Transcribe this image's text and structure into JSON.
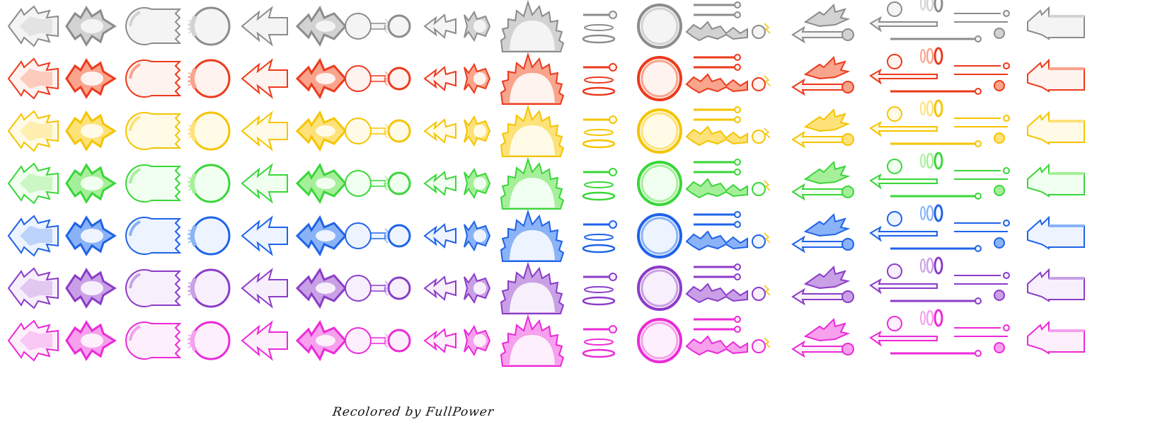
{
  "sheet": {
    "credit": "Recolored by  FullPower",
    "palettes": [
      {
        "name": "gray",
        "main": "#8c8c8c",
        "light": "#d2d2d2",
        "fill": "#f4f4f4"
      },
      {
        "name": "red",
        "main": "#ec3a1c",
        "light": "#f9a48c",
        "fill": "#fff3ef"
      },
      {
        "name": "yellow",
        "main": "#f5c400",
        "light": "#fde27a",
        "fill": "#fffbe6"
      },
      {
        "name": "green",
        "main": "#3ad63a",
        "light": "#a6ef9a",
        "fill": "#f1fff0"
      },
      {
        "name": "blue",
        "main": "#1f63e8",
        "light": "#8ab3f7",
        "fill": "#eef4ff"
      },
      {
        "name": "purple",
        "main": "#8c3cc8",
        "light": "#c9a0e6",
        "fill": "#f7f0fc"
      },
      {
        "name": "pink",
        "main": "#ec2ad8",
        "light": "#f6a0ee",
        "fill": "#fdf0fc"
      }
    ],
    "sprite_columns": [
      "flame-blast-left",
      "flame-blast-double",
      "beam-head-open",
      "energy-orb-ring",
      "arrow-flame-left",
      "arrow-flame-double",
      "ball-and-tail",
      "flame-burst-pair",
      "aura-dome",
      "rod-and-rings",
      "large-energy-orb",
      "lightning-rods-spark",
      "wing-and-arrow",
      "combo-projectiles",
      "beam-start"
    ]
  }
}
